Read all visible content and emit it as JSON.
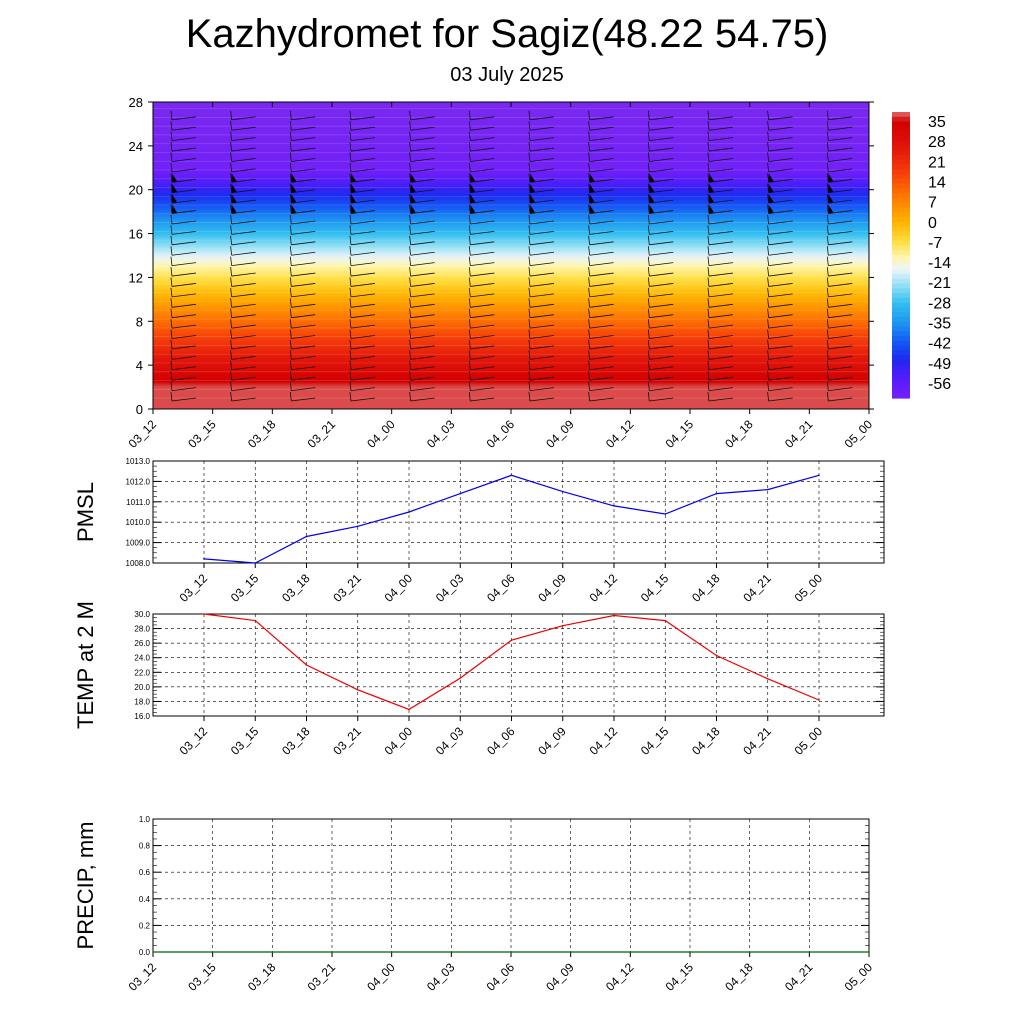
{
  "header": {
    "title": "Kazhydromet for Sagiz(48.22 54.75)",
    "subtitle": "03 July 2025"
  },
  "colorbar": {
    "labels": [
      "35",
      "28",
      "21",
      "14",
      "7",
      "0",
      "-7",
      "-14",
      "-21",
      "-28",
      "-35",
      "-42",
      "-49",
      "-56"
    ]
  },
  "chart_data": [
    {
      "type": "heatmap",
      "name": "vertical cross-section",
      "x_ticks": [
        "03_12",
        "03_15",
        "03_18",
        "03_21",
        "04_00",
        "04_03",
        "04_06",
        "04_09",
        "04_12",
        "04_15",
        "04_18",
        "04_21",
        "05_00"
      ],
      "y_ticks": [
        0,
        4,
        8,
        12,
        16,
        20,
        24,
        28
      ],
      "ylim": [
        0,
        28
      ],
      "color_range": [
        -56,
        35
      ],
      "colormap": "blue-cyan-white-yellow-orange-red",
      "overlay": "wind barbs"
    },
    {
      "type": "line",
      "ylabel": "PMSL",
      "x": [
        "03_12",
        "03_15",
        "03_18",
        "03_21",
        "04_00",
        "04_03",
        "04_06",
        "04_09",
        "04_12",
        "04_15",
        "04_18",
        "04_21",
        "05_00"
      ],
      "values": [
        1008.2,
        1008.0,
        1009.3,
        1009.8,
        1010.5,
        1011.4,
        1012.3,
        1011.5,
        1010.8,
        1010.4,
        1011.4,
        1011.6,
        1012.3
      ],
      "ylim": [
        1008.0,
        1013.0
      ],
      "y_ticks": [
        "1008.0",
        "1009.0",
        "1010.0",
        "1011.0",
        "1012.0",
        "1013.0"
      ],
      "color": "#0000ee",
      "grid": true
    },
    {
      "type": "line",
      "ylabel": "TEMP at 2 M",
      "x": [
        "03_12",
        "03_15",
        "03_18",
        "03_21",
        "04_00",
        "04_03",
        "04_06",
        "04_09",
        "04_12",
        "04_15",
        "04_18",
        "04_21",
        "05_00"
      ],
      "values": [
        30.0,
        29.1,
        23.0,
        19.6,
        16.9,
        21.2,
        26.4,
        28.4,
        29.8,
        29.1,
        24.3,
        21.1,
        18.2
      ],
      "ylim": [
        16.0,
        30.0
      ],
      "y_ticks": [
        "16.0",
        "18.0",
        "20.0",
        "22.0",
        "24.0",
        "26.0",
        "28.0",
        "30.0"
      ],
      "color": "#ee0000",
      "grid": true
    },
    {
      "type": "line",
      "ylabel": "PRECIP, mm",
      "x": [
        "03_12",
        "03_15",
        "03_18",
        "03_21",
        "04_00",
        "04_03",
        "04_06",
        "04_09",
        "04_12",
        "04_15",
        "04_18",
        "04_21",
        "05_00"
      ],
      "values": [
        0,
        0,
        0,
        0,
        0,
        0,
        0,
        0,
        0,
        0,
        0,
        0,
        0
      ],
      "ylim": [
        0,
        1
      ],
      "y_ticks": [
        "0.0",
        "0.2",
        "0.4",
        "0.6",
        "0.8",
        "1.0"
      ],
      "color": "#006400",
      "grid": true
    }
  ]
}
